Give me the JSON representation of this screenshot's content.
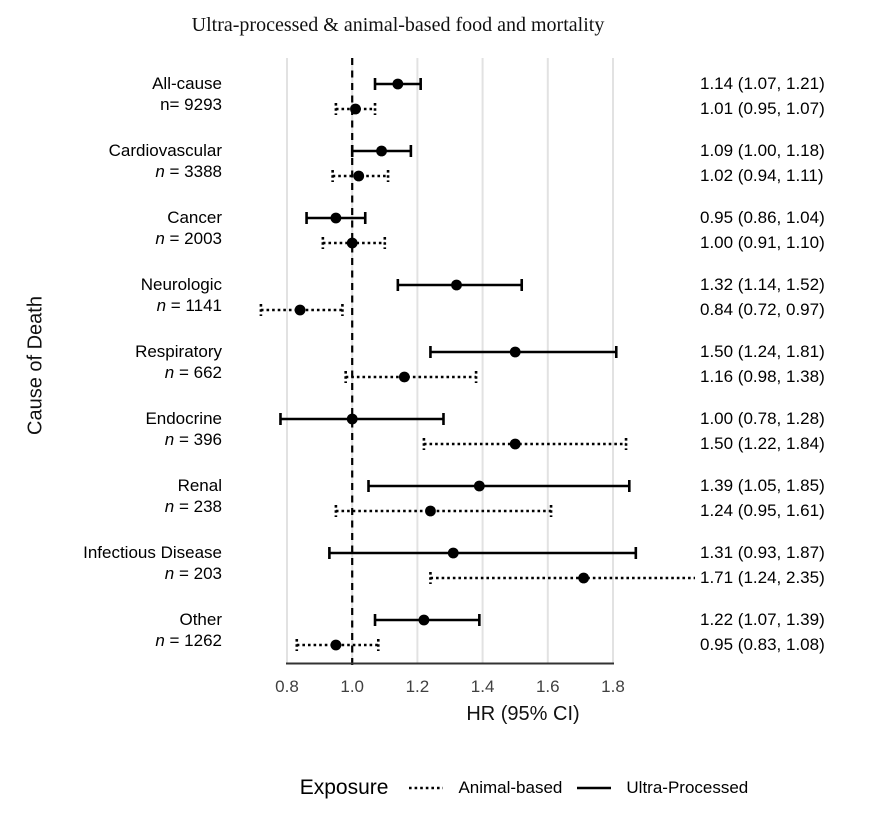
{
  "chart_data": {
    "type": "forest",
    "title": "Ultra-processed & animal-based food and mortality",
    "xlabel": "HR (95% CI)",
    "ylabel": "Cause of Death",
    "x_ticks": [
      "0.8",
      "1.0",
      "1.2",
      "1.4",
      "1.6",
      "1.8"
    ],
    "x_range": [
      0.8,
      1.8
    ],
    "reference_line": 1.0,
    "grid": true,
    "legend": {
      "title": "Exposure",
      "position": "bottom",
      "items": [
        {
          "label": "Animal-based",
          "line_style": "dotted"
        },
        {
          "label": "Ultra-Processed",
          "line_style": "solid"
        }
      ]
    },
    "groups": [
      {
        "cause": "All-cause",
        "n_label": "n= 9293",
        "n_italic": false,
        "rows": [
          {
            "exposure": "Ultra-Processed",
            "style": "solid",
            "hr": 1.14,
            "ci_low": 1.07,
            "ci_high": 1.21,
            "text": "1.14 (1.07, 1.21)"
          },
          {
            "exposure": "Animal-based",
            "style": "dotted",
            "hr": 1.01,
            "ci_low": 0.95,
            "ci_high": 1.07,
            "text": "1.01 (0.95, 1.07)"
          }
        ]
      },
      {
        "cause": "Cardiovascular",
        "n_label": "n = 3388",
        "n_italic": true,
        "rows": [
          {
            "exposure": "Ultra-Processed",
            "style": "solid",
            "hr": 1.09,
            "ci_low": 1.0,
            "ci_high": 1.18,
            "text": "1.09 (1.00, 1.18)"
          },
          {
            "exposure": "Animal-based",
            "style": "dotted",
            "hr": 1.02,
            "ci_low": 0.94,
            "ci_high": 1.11,
            "text": "1.02 (0.94, 1.11)"
          }
        ]
      },
      {
        "cause": "Cancer",
        "n_label": "n = 2003",
        "n_italic": true,
        "rows": [
          {
            "exposure": "Ultra-Processed",
            "style": "solid",
            "hr": 0.95,
            "ci_low": 0.86,
            "ci_high": 1.04,
            "text": "0.95 (0.86, 1.04)"
          },
          {
            "exposure": "Animal-based",
            "style": "dotted",
            "hr": 1.0,
            "ci_low": 0.91,
            "ci_high": 1.1,
            "text": "1.00 (0.91, 1.10)"
          }
        ]
      },
      {
        "cause": "Neurologic",
        "n_label": "n = 1141",
        "n_italic": true,
        "rows": [
          {
            "exposure": "Ultra-Processed",
            "style": "solid",
            "hr": 1.32,
            "ci_low": 1.14,
            "ci_high": 1.52,
            "text": "1.32 (1.14, 1.52)"
          },
          {
            "exposure": "Animal-based",
            "style": "dotted",
            "hr": 0.84,
            "ci_low": 0.72,
            "ci_high": 0.97,
            "text": "0.84 (0.72, 0.97)"
          }
        ]
      },
      {
        "cause": "Respiratory",
        "n_label": "n = 662",
        "n_italic": true,
        "rows": [
          {
            "exposure": "Ultra-Processed",
            "style": "solid",
            "hr": 1.5,
            "ci_low": 1.24,
            "ci_high": 1.81,
            "text": "1.50 (1.24, 1.81)"
          },
          {
            "exposure": "Animal-based",
            "style": "dotted",
            "hr": 1.16,
            "ci_low": 0.98,
            "ci_high": 1.38,
            "text": "1.16 (0.98, 1.38)"
          }
        ]
      },
      {
        "cause": "Endocrine",
        "n_label": "n = 396",
        "n_italic": true,
        "rows": [
          {
            "exposure": "Ultra-Processed",
            "style": "solid",
            "hr": 1.0,
            "ci_low": 0.78,
            "ci_high": 1.28,
            "text": "1.00 (0.78, 1.28)"
          },
          {
            "exposure": "Animal-based",
            "style": "dotted",
            "hr": 1.5,
            "ci_low": 1.22,
            "ci_high": 1.84,
            "text": "1.50 (1.22, 1.84)"
          }
        ]
      },
      {
        "cause": "Renal",
        "n_label": "n = 238",
        "n_italic": true,
        "rows": [
          {
            "exposure": "Ultra-Processed",
            "style": "solid",
            "hr": 1.39,
            "ci_low": 1.05,
            "ci_high": 1.85,
            "text": "1.39 (1.05, 1.85)"
          },
          {
            "exposure": "Animal-based",
            "style": "dotted",
            "hr": 1.24,
            "ci_low": 0.95,
            "ci_high": 1.61,
            "text": "1.24 (0.95, 1.61)"
          }
        ]
      },
      {
        "cause": "Infectious Disease",
        "n_label": "n = 203",
        "n_italic": true,
        "rows": [
          {
            "exposure": "Ultra-Processed",
            "style": "solid",
            "hr": 1.31,
            "ci_low": 0.93,
            "ci_high": 1.87,
            "text": "1.31 (0.93, 1.87)"
          },
          {
            "exposure": "Animal-based",
            "style": "dotted",
            "hr": 1.71,
            "ci_low": 1.24,
            "ci_high": 2.35,
            "text": "1.71 (1.24, 2.35)"
          }
        ]
      },
      {
        "cause": "Other",
        "n_label": "n = 1262",
        "n_italic": true,
        "rows": [
          {
            "exposure": "Ultra-Processed",
            "style": "solid",
            "hr": 1.22,
            "ci_low": 1.07,
            "ci_high": 1.39,
            "text": "1.22 (1.07, 1.39)"
          },
          {
            "exposure": "Animal-based",
            "style": "dotted",
            "hr": 0.95,
            "ci_low": 0.83,
            "ci_high": 1.08,
            "text": "0.95 (0.83, 1.08)"
          }
        ]
      }
    ]
  },
  "colors": {
    "line": "#000000",
    "grid": "#e2e2e2",
    "axis": "#333333",
    "tick_text": "#404040",
    "text": "#000000"
  }
}
